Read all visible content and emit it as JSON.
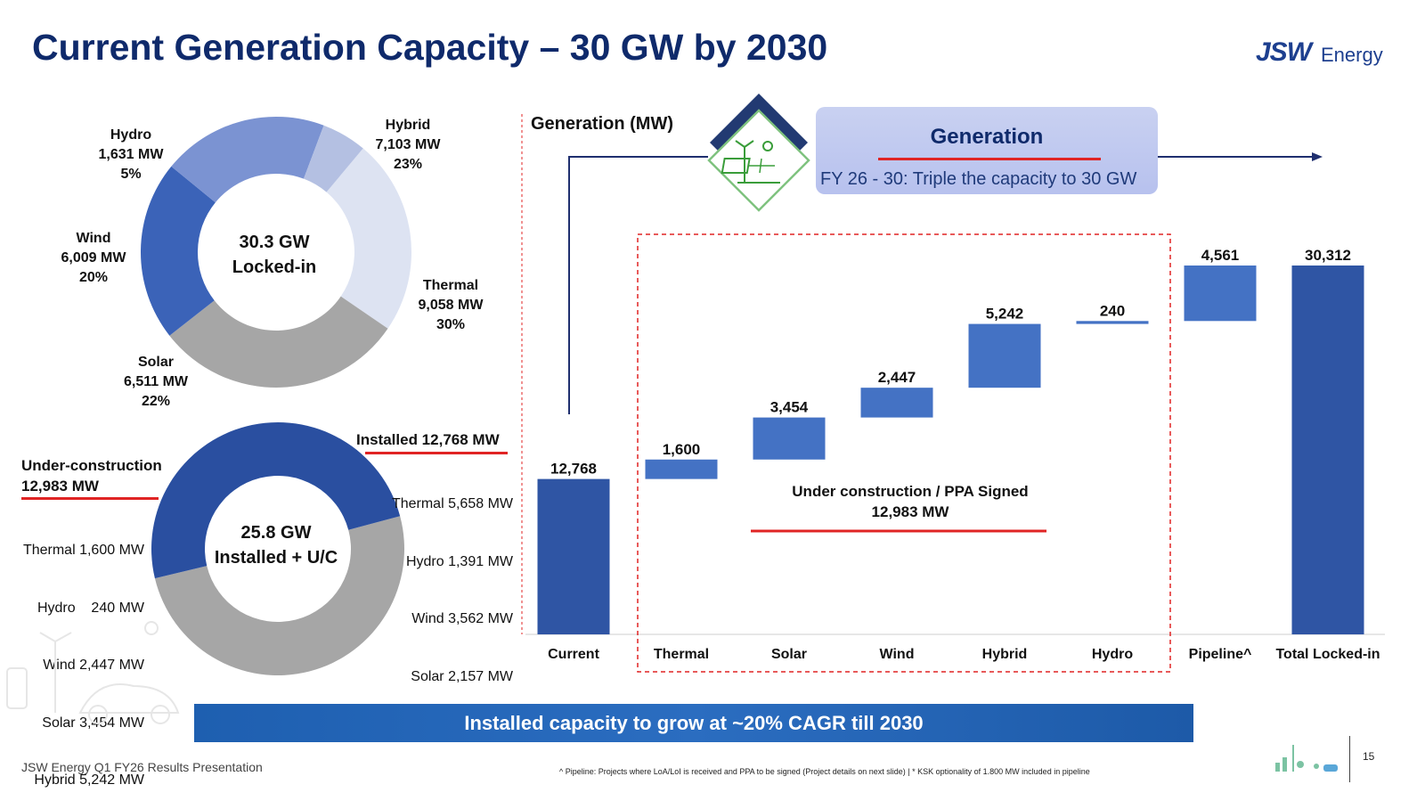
{
  "page": {
    "title": "Current Generation Capacity – 30 GW by 2030",
    "logo_jsw": "JSW",
    "logo_energy": "Energy",
    "footer": "JSW Energy Q1 FY26 Results Presentation",
    "footnote": "^ Pipeline: Projects where LoA/LoI is received and PPA to be signed  (Project details on next slide) | * KSK optionality of 1.800 MW included in pipeline",
    "page_number": "15",
    "banner": "Installed capacity to grow at ~20% CAGR till 2030"
  },
  "colors": {
    "title": "#0f2a6b",
    "bar": "#4472c4",
    "bar_dark": "#2f55a4",
    "accent_red": "#e02424",
    "banner": "#2563b3"
  },
  "donut1": {
    "center_line1": "30.3 GW",
    "center_line2": "Locked-in",
    "segments": [
      {
        "name": "Hybrid",
        "mw": "7,103 MW",
        "pct": "23%",
        "value": 7103,
        "color": "#dde3f2"
      },
      {
        "name": "Thermal",
        "mw": "9,058 MW",
        "pct": "30%",
        "value": 9058,
        "color": "#a6a6a6"
      },
      {
        "name": "Solar",
        "mw": "6,511 MW",
        "pct": "22%",
        "value": 6511,
        "color": "#3b63b8"
      },
      {
        "name": "Wind",
        "mw": "6,009 MW",
        "pct": "20%",
        "value": 6009,
        "color": "#7b93d2"
      },
      {
        "name": "Hydro",
        "mw": "1,631 MW",
        "pct": "5%",
        "value": 1631,
        "color": "#b4c0e2"
      }
    ]
  },
  "donut2": {
    "center_line1": "25.8 GW",
    "center_line2": "Installed + U/C",
    "installed": {
      "header": "Installed 12,768 MW",
      "value": 12768,
      "color": "#2a4fa0",
      "items": [
        "Thermal 5,658 MW",
        "Hydro 1,391 MW",
        "Wind 3,562 MW",
        "Solar 2,157 MW"
      ]
    },
    "under_construction": {
      "header1": "Under-construction",
      "header2": "12,983 MW",
      "value": 12983,
      "color": "#a6a6a6",
      "items": [
        "Thermal 1,600 MW",
        "Hydro    240 MW",
        "Wind 2,447 MW",
        "Solar 3,454 MW",
        "Hybrid 5,242 MW"
      ]
    }
  },
  "generation": {
    "axis_title": "Generation (MW)",
    "box_title": "Generation",
    "box_subtitle": "FY 26 - 30: Triple the capacity to 30 GW",
    "uc_label_line1": "Under construction / PPA Signed",
    "uc_label_line2": "12,983 MW"
  },
  "chart_data": {
    "type": "bar",
    "subtype": "waterfall",
    "title": "Generation (MW)",
    "categories": [
      "Current",
      "Thermal",
      "Solar",
      "Wind",
      "Hybrid",
      "Hydro",
      "Pipeline^",
      "Total Locked-in"
    ],
    "values": [
      12768,
      1600,
      3454,
      2447,
      5242,
      240,
      4561,
      30312
    ],
    "labels": [
      "12,768",
      "1,600",
      "3,454",
      "2,447",
      "5,242",
      "240",
      "4,561",
      "30,312"
    ],
    "kinds": [
      "total",
      "step",
      "step",
      "step",
      "step",
      "step",
      "step",
      "total"
    ],
    "ylim": [
      0,
      30312
    ]
  }
}
